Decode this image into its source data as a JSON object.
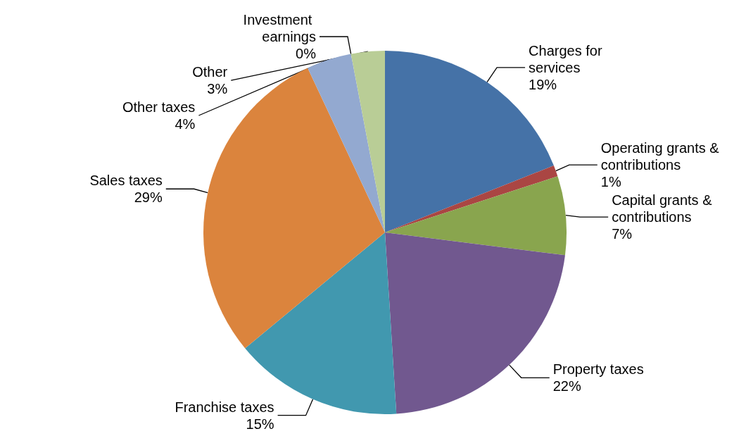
{
  "chart_data": {
    "type": "pie",
    "categories": [
      "Charges for services",
      "Operating grants & contributions",
      "Capital grants & contributions",
      "Property taxes",
      "Franchise taxes",
      "Sales taxes",
      "Other taxes",
      "Investment earnings",
      "Other"
    ],
    "values": [
      19,
      1,
      7,
      22,
      15,
      29,
      4,
      0,
      3
    ],
    "value_labels": [
      "19%",
      "1%",
      "7%",
      "22%",
      "15%",
      "29%",
      "4%",
      "0%",
      "3%"
    ],
    "colors": [
      "#4572a7",
      "#aa4643",
      "#89a54e",
      "#71588f",
      "#4198af",
      "#db843d",
      "#93a9d0",
      "#d19392",
      "#b9cd96"
    ],
    "legend": false
  }
}
